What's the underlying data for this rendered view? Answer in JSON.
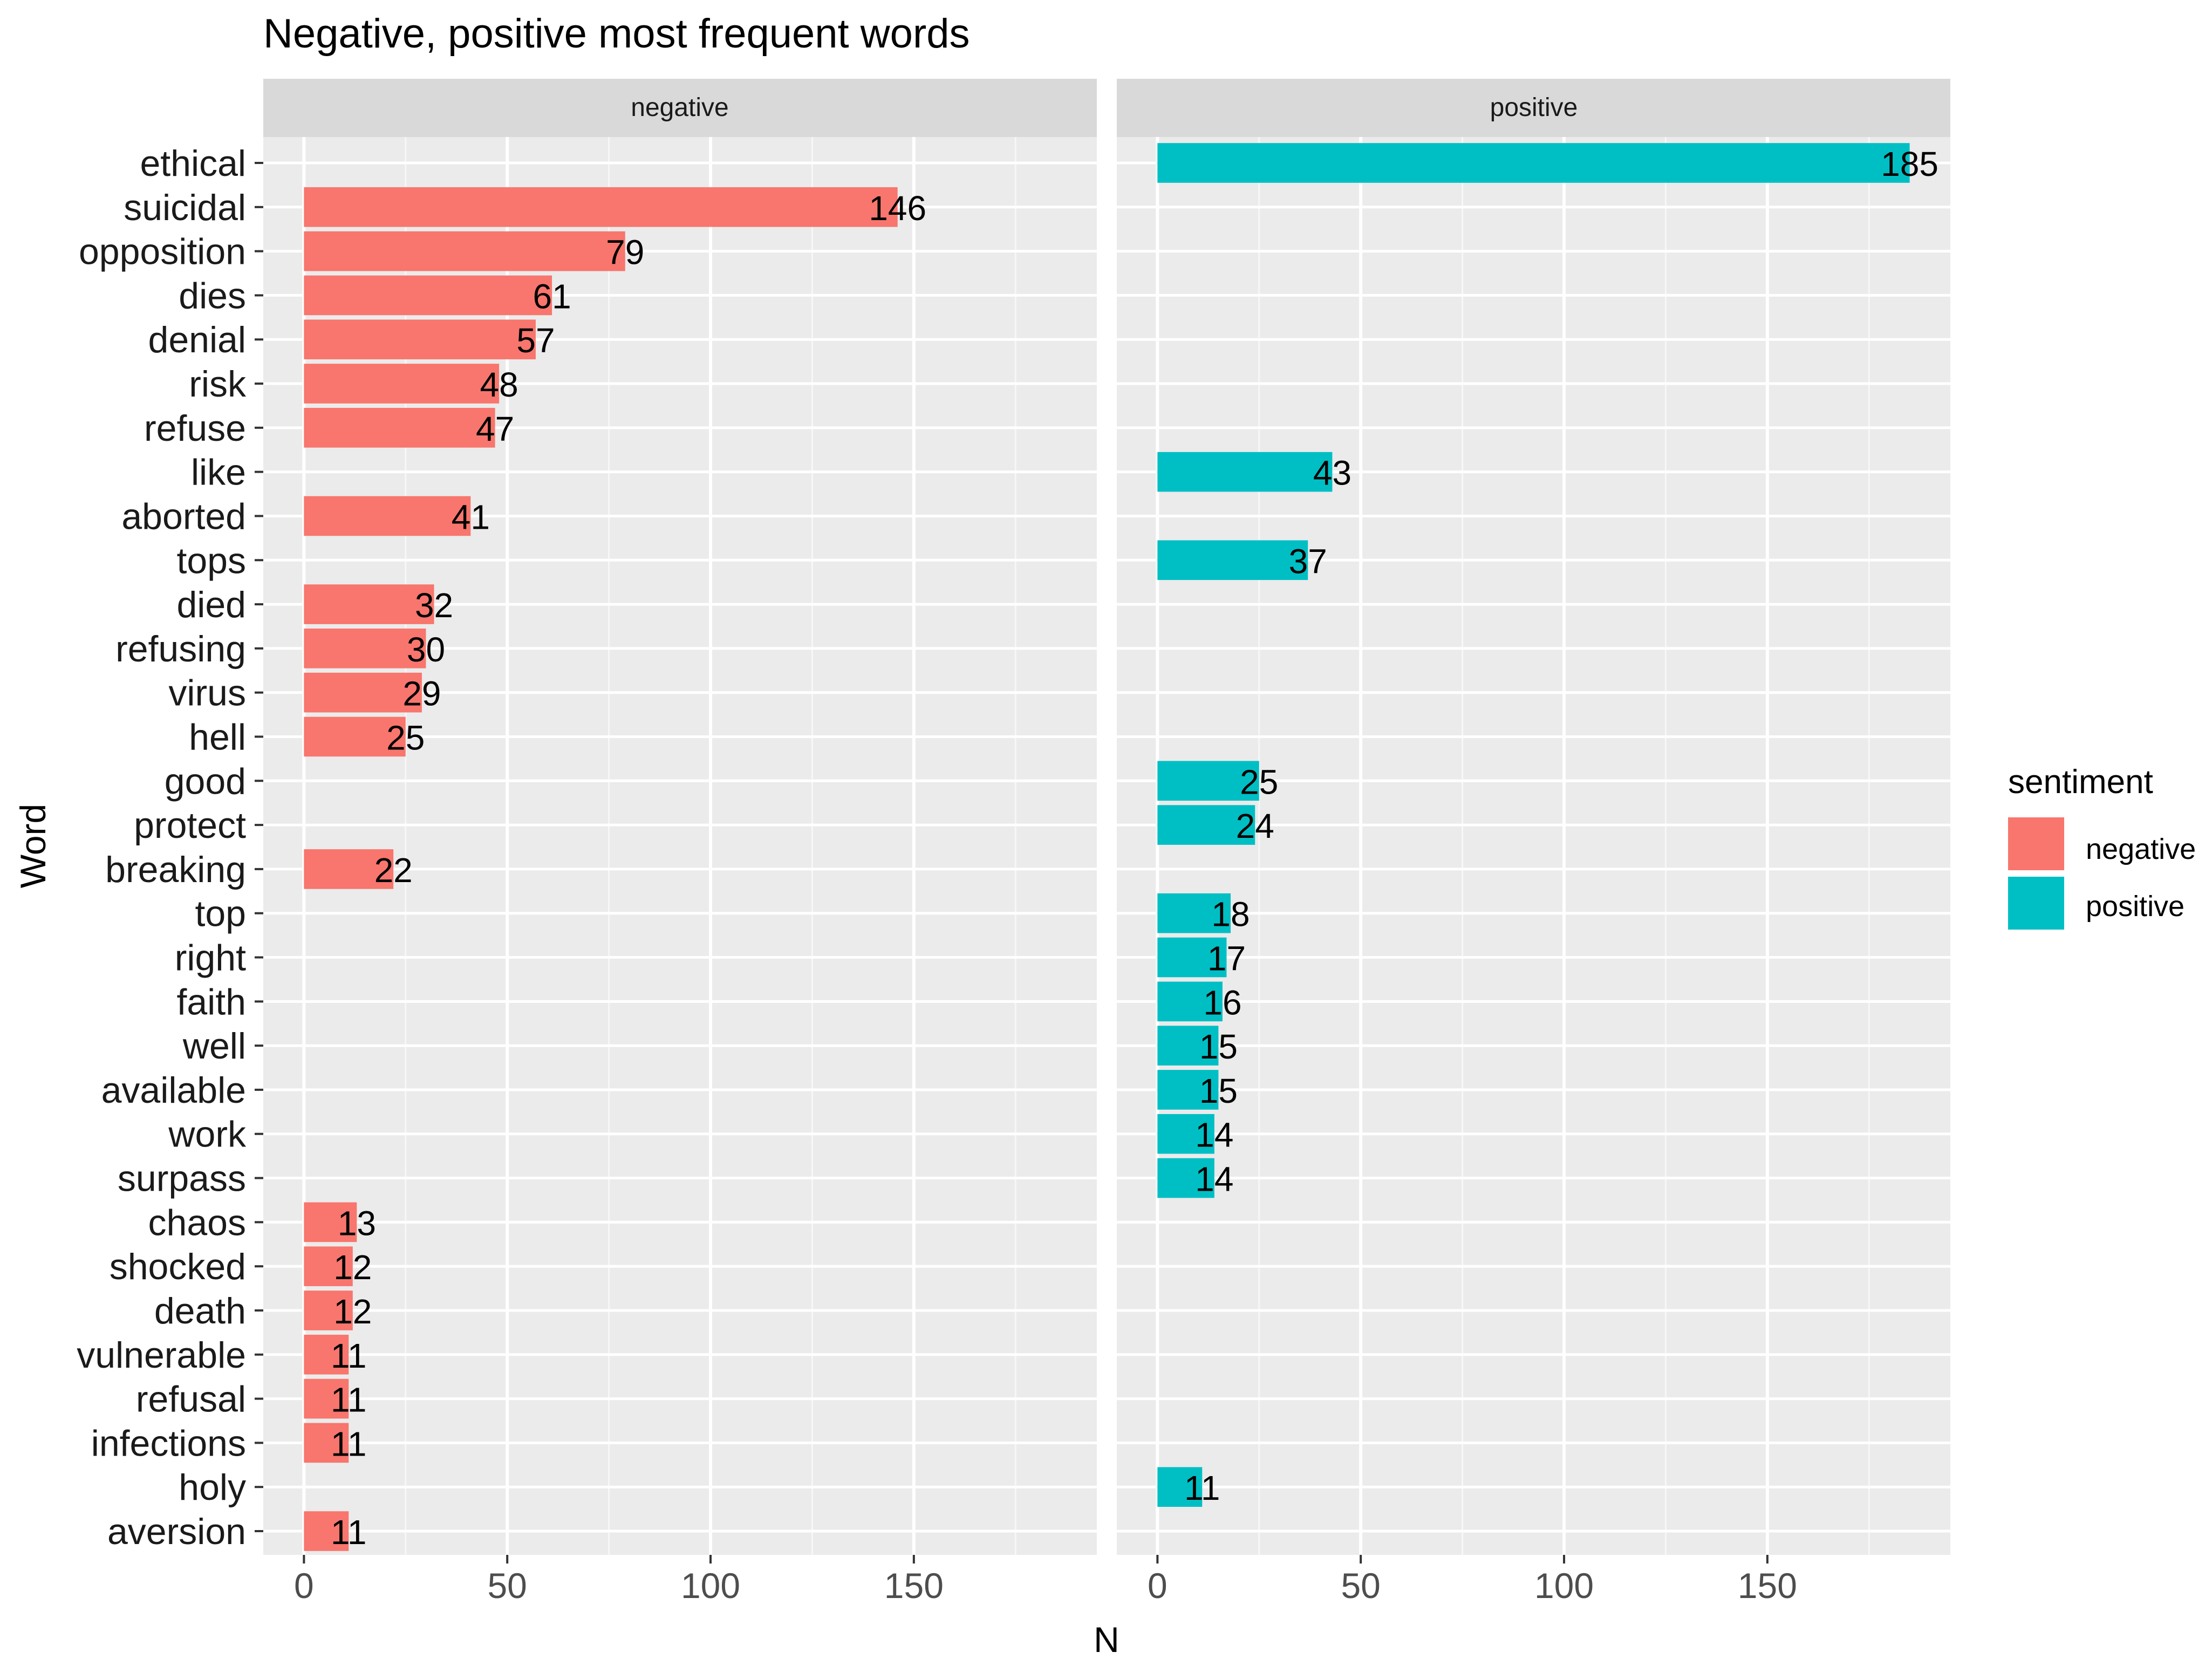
{
  "chart_data": {
    "type": "bar",
    "orientation": "horizontal",
    "faceted": true,
    "title": "Negative, positive most frequent words",
    "xlabel": "N",
    "ylabel": "Word",
    "xlim": [
      -10,
      195
    ],
    "x_ticks": [
      0,
      50,
      100,
      150
    ],
    "grid": true,
    "legend_position": "right",
    "legend": {
      "title": "sentiment",
      "entries": [
        {
          "label": "negative",
          "color": "#F8766D"
        },
        {
          "label": "positive",
          "color": "#00BFC4"
        }
      ]
    },
    "categories": [
      "ethical",
      "suicidal",
      "opposition",
      "dies",
      "denial",
      "risk",
      "refuse",
      "like",
      "aborted",
      "tops",
      "died",
      "refusing",
      "virus",
      "hell",
      "good",
      "protect",
      "breaking",
      "top",
      "right",
      "faith",
      "well",
      "available",
      "work",
      "surpass",
      "chaos",
      "shocked",
      "death",
      "vulnerable",
      "refusal",
      "infections",
      "holy",
      "aversion"
    ],
    "panels": [
      {
        "name": "negative",
        "color": "#F8766D",
        "values": [
          null,
          146,
          79,
          61,
          57,
          48,
          47,
          null,
          41,
          null,
          32,
          30,
          29,
          25,
          null,
          null,
          22,
          null,
          null,
          null,
          null,
          null,
          null,
          null,
          13,
          12,
          12,
          11,
          11,
          11,
          null,
          11
        ]
      },
      {
        "name": "positive",
        "color": "#00BFC4",
        "values": [
          185,
          null,
          null,
          null,
          null,
          null,
          null,
          43,
          null,
          37,
          null,
          null,
          null,
          null,
          25,
          24,
          null,
          18,
          17,
          16,
          15,
          15,
          14,
          14,
          null,
          null,
          null,
          null,
          null,
          null,
          11,
          null
        ]
      }
    ]
  }
}
